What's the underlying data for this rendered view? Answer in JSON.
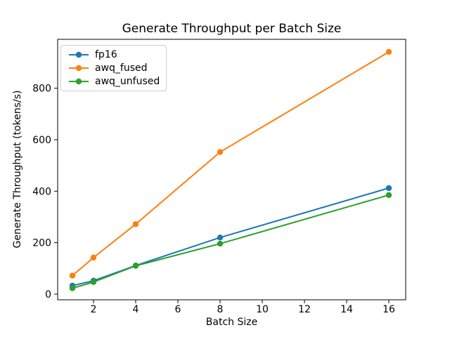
{
  "figure": {
    "background": "#ffffff"
  },
  "chart_data": {
    "type": "line",
    "title": "Generate Throughput per Batch Size",
    "xlabel": "Batch Size",
    "ylabel": "Generate Throughput (tokens/s)",
    "x": [
      1,
      2,
      4,
      8,
      16
    ],
    "series": [
      {
        "name": "fp16",
        "color": "#1f77b4",
        "values": [
          33,
          52,
          111,
          220,
          412
        ]
      },
      {
        "name": "awq_fused",
        "color": "#ff7f0e",
        "values": [
          72,
          142,
          272,
          552,
          941
        ]
      },
      {
        "name": "awq_unfused",
        "color": "#2ca02c",
        "values": [
          23,
          47,
          110,
          196,
          385
        ]
      }
    ],
    "xticks": [
      2,
      4,
      6,
      8,
      10,
      12,
      14,
      16
    ],
    "yticks": [
      0,
      200,
      400,
      600,
      800
    ],
    "xlim": [
      0.3,
      16.8
    ],
    "ylim": [
      -22,
      990
    ],
    "grid": false,
    "legend_position": "upper left",
    "marker": "circle",
    "line_width": 2,
    "axis_color": "#000000",
    "legend_border_color": "#cccccc"
  }
}
